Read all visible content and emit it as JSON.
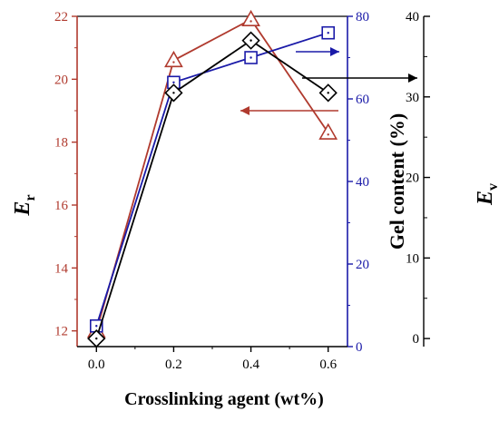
{
  "colors": {
    "er": "#b03a2e",
    "gel": "#1a1aa8",
    "ev": "#000000",
    "axis_black": "#000000"
  },
  "chart_data": {
    "type": "line",
    "xlabel": "Crosslinking agent (wt%)",
    "x": [
      0.0,
      0.2,
      0.4,
      0.6
    ],
    "xticks": [
      "0.0",
      "0.2",
      "0.4",
      "0.6"
    ],
    "xlim": [
      -0.05,
      0.65
    ],
    "series": [
      {
        "key": "er",
        "axis": "left",
        "axis_label_main": "E",
        "axis_label_sub": "r",
        "marker": "triangle",
        "values": [
          12.0,
          20.6,
          21.9,
          18.3
        ],
        "ylim": [
          11.5,
          22
        ],
        "yticks": [
          "12",
          "14",
          "16",
          "18",
          "20",
          "22"
        ]
      },
      {
        "key": "gel",
        "axis": "right-inner",
        "axis_label": "Gel content (%)",
        "marker": "square",
        "values": [
          5,
          64,
          70,
          76
        ],
        "ylim": [
          0,
          80
        ],
        "yticks": [
          "0",
          "20",
          "40",
          "60",
          "80"
        ]
      },
      {
        "key": "ev",
        "axis": "right-outer",
        "axis_label_main": "E",
        "axis_label_sub": "v",
        "marker": "diamond",
        "values": [
          0,
          30.5,
          37,
          30.5
        ],
        "ylim": [
          -1,
          40
        ],
        "yticks": [
          "0",
          "10",
          "20",
          "30",
          "40"
        ]
      }
    ],
    "annotations": [
      {
        "type": "arrow",
        "series": "er",
        "direction": "left"
      },
      {
        "type": "arrow",
        "series": "gel",
        "direction": "right"
      },
      {
        "type": "arrow",
        "series": "ev",
        "direction": "right"
      }
    ]
  }
}
